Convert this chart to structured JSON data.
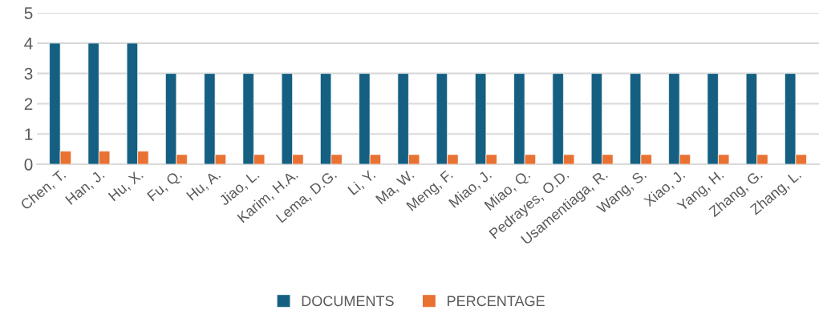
{
  "chart_data": {
    "type": "bar",
    "categories": [
      "Chen, T.",
      "Han, J.",
      "Hu, X.",
      "Fu, Q.",
      "Hu, A.",
      "Jiao, L.",
      "Karim, H.A.",
      "Lema, D.G.",
      "Li, Y.",
      "Ma, W.",
      "Meng, F.",
      "Miao, J.",
      "Miao, Q.",
      "Pedrayes, O.D.",
      "Usamentiaga, R.",
      "Wang, S.",
      "Xiao, J.",
      "Yang, H.",
      "Zhang, G.",
      "Zhang, L."
    ],
    "series": [
      {
        "name": "DOCUMENTS",
        "color": "#156082",
        "values": [
          4,
          4,
          4,
          3,
          3,
          3,
          3,
          3,
          3,
          3,
          3,
          3,
          3,
          3,
          3,
          3,
          3,
          3,
          3,
          3
        ]
      },
      {
        "name": "PERCENTAGE",
        "color": "#e97132",
        "values": [
          0.43,
          0.43,
          0.43,
          0.32,
          0.32,
          0.32,
          0.32,
          0.32,
          0.32,
          0.32,
          0.32,
          0.32,
          0.32,
          0.32,
          0.32,
          0.32,
          0.32,
          0.32,
          0.32,
          0.32
        ]
      }
    ],
    "ylim": [
      0,
      5
    ],
    "yticks": [
      0,
      1,
      2,
      3,
      4,
      5
    ],
    "grid": "y",
    "legend": "bottom"
  }
}
